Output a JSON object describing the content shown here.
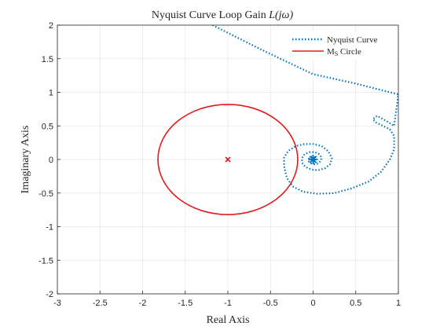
{
  "chart_data": {
    "type": "line",
    "title": "Nyquist Curve Loop Gain L(jω)",
    "title_main": "Nyquist Curve Loop Gain ",
    "title_italic": "L(jω)",
    "xlabel": "Real Axis",
    "ylabel": "Imaginary Axis",
    "xlim": [
      -3,
      1
    ],
    "ylim": [
      -2,
      2
    ],
    "xticks": [
      -3,
      -2.5,
      -2,
      -1.5,
      -1,
      -0.5,
      0,
      0.5,
      1
    ],
    "yticks": [
      -2,
      -1.5,
      -1,
      -0.5,
      0,
      0.5,
      1,
      1.5,
      2
    ],
    "xtick_labels": [
      "-3",
      "-2.5",
      "-2",
      "-1.5",
      "-1",
      "-0.5",
      "0",
      "0.5",
      "1"
    ],
    "ytick_labels": [
      "-2",
      "-1.5",
      "-1",
      "-0.5",
      "0",
      "0.5",
      "1",
      "1.5",
      "2"
    ],
    "grid": true,
    "legend_position": "top-right",
    "series": [
      {
        "name": "Nyquist Curve",
        "color": "#0072BD",
        "style": "dotted",
        "points": [
          [
            -1.18,
            2.0
          ],
          [
            -0.6,
            1.63
          ],
          [
            0.0,
            1.27
          ],
          [
            0.5,
            1.13
          ],
          [
            1.0,
            0.97
          ],
          [
            0.95,
            0.5
          ],
          [
            0.85,
            0.58
          ],
          [
            0.75,
            0.65
          ],
          [
            0.7,
            0.6
          ],
          [
            0.74,
            0.55
          ],
          [
            0.82,
            0.5
          ],
          [
            0.9,
            0.45
          ],
          [
            0.95,
            0.35
          ],
          [
            0.95,
            0.15
          ],
          [
            0.9,
            0.0
          ],
          [
            0.8,
            -0.18
          ],
          [
            0.65,
            -0.33
          ],
          [
            0.45,
            -0.43
          ],
          [
            0.25,
            -0.5
          ],
          [
            0.05,
            -0.51
          ],
          [
            -0.12,
            -0.48
          ],
          [
            -0.24,
            -0.4
          ],
          [
            -0.31,
            -0.27
          ],
          [
            -0.34,
            -0.1
          ],
          [
            -0.34,
            0.03
          ],
          [
            -0.29,
            0.13
          ],
          [
            -0.2,
            0.2
          ],
          [
            -0.1,
            0.23
          ],
          [
            0.0,
            0.23
          ],
          [
            0.1,
            0.2
          ],
          [
            0.18,
            0.12
          ],
          [
            0.22,
            0.02
          ],
          [
            0.2,
            -0.07
          ],
          [
            0.14,
            -0.13
          ],
          [
            0.06,
            -0.16
          ],
          [
            -0.02,
            -0.15
          ],
          [
            -0.09,
            -0.11
          ],
          [
            -0.13,
            -0.05
          ],
          [
            -0.13,
            0.02
          ],
          [
            -0.1,
            0.08
          ],
          [
            -0.04,
            0.11
          ],
          [
            0.02,
            0.11
          ],
          [
            0.07,
            0.08
          ],
          [
            0.1,
            0.03
          ],
          [
            0.09,
            -0.02
          ],
          [
            0.06,
            -0.06
          ],
          [
            0.02,
            -0.07
          ],
          [
            -0.02,
            -0.06
          ],
          [
            -0.05,
            -0.03
          ],
          [
            -0.05,
            0.01
          ],
          [
            -0.03,
            0.04
          ],
          [
            0.0,
            0.04
          ],
          [
            0.03,
            0.03
          ],
          [
            0.04,
            0.0
          ],
          [
            0.03,
            -0.02
          ],
          [
            0.01,
            -0.03
          ],
          [
            -0.01,
            -0.02
          ],
          [
            -0.02,
            0.0
          ],
          [
            -0.01,
            0.02
          ],
          [
            0.01,
            0.02
          ],
          [
            0.02,
            0.0
          ],
          [
            0.0,
            0.0
          ]
        ]
      },
      {
        "name": "Ms Circle",
        "legend_main": "M",
        "legend_sub": "S",
        "legend_rest": " Circle",
        "color": "#E31A1C",
        "style": "solid",
        "center": [
          -1,
          0
        ],
        "radius": 0.82
      }
    ],
    "markers": [
      {
        "shape": "x",
        "color": "#E31A1C",
        "x": -1,
        "y": 0
      },
      {
        "shape": "asterisk",
        "color": "#0072BD",
        "x": 0,
        "y": 0
      }
    ]
  }
}
